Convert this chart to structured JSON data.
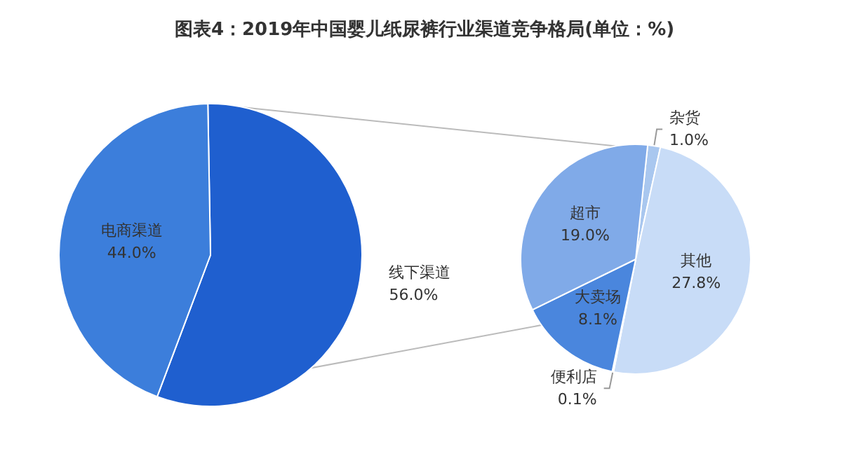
{
  "chart_data": [
    {
      "type": "pie",
      "title": "图表4：2019年中国婴儿纸尿裤行业渠道竞争格局(单位：%)",
      "categories": [
        "线下渠道",
        "电商渠道"
      ],
      "values": [
        56.0,
        44.0
      ],
      "colors": [
        "#1f5fcf",
        "#3c7edb"
      ],
      "value_labels": [
        "56.0%",
        "44.0%"
      ]
    },
    {
      "type": "pie",
      "categories": [
        "杂货",
        "其他",
        "便利店",
        "大卖场",
        "超市"
      ],
      "values": [
        1.0,
        27.8,
        0.1,
        8.1,
        19.0
      ],
      "colors": [
        "#a9c7ef",
        "#c8dcf7",
        "#6f9fe3",
        "#4a86dd",
        "#80aae8"
      ],
      "value_labels": [
        "1.0%",
        "27.8%",
        "0.1%",
        "8.1%",
        "19.0%"
      ]
    }
  ]
}
